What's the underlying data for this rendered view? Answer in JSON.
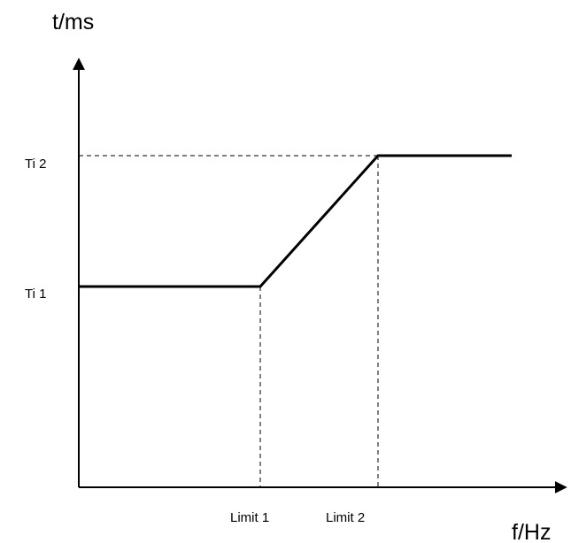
{
  "chart_data": {
    "type": "line",
    "xlabel": "f/Hz",
    "ylabel": "t/ms",
    "xticks": [
      "Limit 1",
      "Limit 2"
    ],
    "yticks": [
      "Ti 1",
      "Ti 2"
    ],
    "grid": false,
    "series": [
      {
        "points": [
          {
            "x": 0,
            "y": "Ti 1"
          },
          {
            "x": "Limit 1",
            "y": "Ti 1"
          },
          {
            "x": "Limit 2",
            "y": "Ti 2"
          },
          {
            "x": "after Limit 2",
            "y": "Ti 2"
          }
        ]
      }
    ]
  }
}
